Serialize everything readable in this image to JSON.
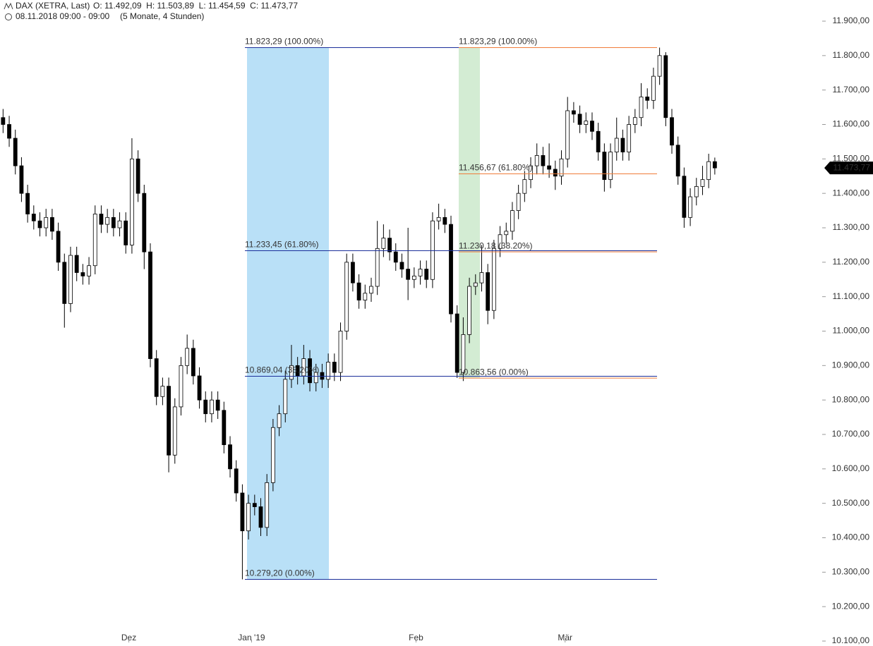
{
  "chart_data": {
    "type": "candlestick",
    "title": "DAX (XETRA, Last)",
    "ohlc_text": "O: 11.492,09  H: 11.503,89  L: 11.454,59  C: 11.473,77",
    "subtitle": "08.11.2018 09:00 - 09:00",
    "period": "(5 Monate, 4 Stunden)",
    "color": "#000000",
    "ylim": [
      10100,
      11900
    ],
    "yticks": [
      {
        "value": 10100,
        "label": "10.100,00"
      },
      {
        "value": 10200,
        "label": "10.200,00"
      },
      {
        "value": 10300,
        "label": "10.300,00"
      },
      {
        "value": 10400,
        "label": "10.400,00"
      },
      {
        "value": 10500,
        "label": "10.500,00"
      },
      {
        "value": 10600,
        "label": "10.600,00"
      },
      {
        "value": 10700,
        "label": "10.700,00"
      },
      {
        "value": 10800,
        "label": "10.800,00"
      },
      {
        "value": 10900,
        "label": "10.900,00"
      },
      {
        "value": 11000,
        "label": "11.000,00"
      },
      {
        "value": 11100,
        "label": "11.100,00"
      },
      {
        "value": 11200,
        "label": "11.200,00"
      },
      {
        "value": 11300,
        "label": "11.300,00"
      },
      {
        "value": 11400,
        "label": "11.400,00"
      },
      {
        "value": 11500,
        "label": "11.500,00"
      },
      {
        "value": 11600,
        "label": "11.600,00"
      },
      {
        "value": 11700,
        "label": "11.700,00"
      },
      {
        "value": 11800,
        "label": "11.800,00"
      },
      {
        "value": 11900,
        "label": "11.900,00"
      }
    ],
    "xlim": [
      -0.5,
      133.5
    ],
    "xticks": [
      {
        "value": 20.5,
        "label": "Dez"
      },
      {
        "value": 40.5,
        "label": "Jan '19"
      },
      {
        "value": 67.3,
        "label": "Feb"
      },
      {
        "value": 91.6,
        "label": "Mär"
      }
    ],
    "last_price": {
      "value": 11473.77,
      "label": "11.473,77"
    },
    "retracements": [
      {
        "color": "#1a3fcc",
        "line_color": "#1b2f9a",
        "band_color": "#b9e0f7",
        "levels": [
          {
            "value": 11823.29,
            "label": "11.823,29 (100.00%)"
          },
          {
            "value": 11233.45,
            "label": "11.233,45 (61.80%)"
          },
          {
            "value": 10869.04,
            "label": "10.869,04 (38.20%)"
          },
          {
            "value": 10279.2,
            "label": "10.279,20 (0.00%)"
          }
        ]
      },
      {
        "color": "#f07c3a",
        "line_color": "#f07c3a",
        "band_color": "#d3ecd3",
        "levels": [
          {
            "value": 11823.29,
            "label": "11.823,29 (100.00%)"
          },
          {
            "value": 11456.67,
            "label": "11.456,67 (61.80%)"
          },
          {
            "value": 11230.18,
            "label": "11.230,18 (38.20%)"
          },
          {
            "value": 10863.56,
            "label": "10.863,56 (0.00%)"
          }
        ]
      }
    ],
    "candles": [
      [
        11620,
        11645,
        11575,
        11600
      ],
      [
        11600,
        11625,
        11535,
        11560
      ],
      [
        11560,
        11585,
        11455,
        11480
      ],
      [
        11480,
        11505,
        11375,
        11400
      ],
      [
        11400,
        11425,
        11315,
        11340
      ],
      [
        11340,
        11365,
        11295,
        11320
      ],
      [
        11320,
        11345,
        11275,
        11300
      ],
      [
        11300,
        11355,
        11275,
        11330
      ],
      [
        11330,
        11355,
        11265,
        11290
      ],
      [
        11290,
        11315,
        11175,
        11200
      ],
      [
        11200,
        11225,
        11010,
        11080
      ],
      [
        11080,
        11245,
        11055,
        11220
      ],
      [
        11220,
        11245,
        11145,
        11170
      ],
      [
        11170,
        11195,
        11135,
        11160
      ],
      [
        11160,
        11215,
        11135,
        11190
      ],
      [
        11190,
        11365,
        11165,
        11340
      ],
      [
        11340,
        11365,
        11285,
        11310
      ],
      [
        11310,
        11355,
        11285,
        11330
      ],
      [
        11330,
        11355,
        11275,
        11300
      ],
      [
        11300,
        11345,
        11275,
        11320
      ],
      [
        11320,
        11345,
        11225,
        11250
      ],
      [
        11250,
        11560,
        11225,
        11500
      ],
      [
        11500,
        11525,
        11375,
        11400
      ],
      [
        11400,
        11425,
        11180,
        11230
      ],
      [
        11230,
        11255,
        10895,
        10920
      ],
      [
        10920,
        10945,
        10785,
        10810
      ],
      [
        10810,
        10865,
        10785,
        10840
      ],
      [
        10840,
        10865,
        10590,
        10640
      ],
      [
        10640,
        10805,
        10615,
        10780
      ],
      [
        10780,
        10925,
        10755,
        10900
      ],
      [
        10900,
        10990,
        10875,
        10950
      ],
      [
        10950,
        10975,
        10845,
        10870
      ],
      [
        10870,
        10895,
        10775,
        10800
      ],
      [
        10800,
        10825,
        10735,
        10760
      ],
      [
        10760,
        10825,
        10735,
        10800
      ],
      [
        10800,
        10825,
        10745,
        10770
      ],
      [
        10770,
        10795,
        10645,
        10670
      ],
      [
        10670,
        10695,
        10575,
        10600
      ],
      [
        10600,
        10625,
        10505,
        10530
      ],
      [
        10530,
        10555,
        10279.2,
        10420
      ],
      [
        10420,
        10525,
        10395,
        10500
      ],
      [
        10500,
        10525,
        10465,
        10490
      ],
      [
        10490,
        10515,
        10405,
        10430
      ],
      [
        10430,
        10585,
        10405,
        10560
      ],
      [
        10560,
        10745,
        10535,
        10720
      ],
      [
        10720,
        10785,
        10695,
        10760
      ],
      [
        10760,
        10885,
        10735,
        10860
      ],
      [
        10860,
        10960,
        10835,
        10900
      ],
      [
        10900,
        10925,
        10845,
        10870
      ],
      [
        10870,
        10960,
        10845,
        10920
      ],
      [
        10920,
        10945,
        10825,
        10850
      ],
      [
        10850,
        10905,
        10825,
        10880
      ],
      [
        10880,
        10905,
        10835,
        10860
      ],
      [
        10860,
        10935,
        10835,
        10910
      ],
      [
        10910,
        10935,
        10855,
        10880
      ],
      [
        10880,
        11025,
        10855,
        11000
      ],
      [
        11000,
        11225,
        10975,
        11200
      ],
      [
        11200,
        11225,
        11115,
        11140
      ],
      [
        11140,
        11165,
        11065,
        11090
      ],
      [
        11090,
        11135,
        11065,
        11110
      ],
      [
        11110,
        11155,
        11085,
        11130
      ],
      [
        11130,
        11320,
        11105,
        11240
      ],
      [
        11240,
        11310,
        11215,
        11270
      ],
      [
        11270,
        11295,
        11205,
        11230
      ],
      [
        11230,
        11255,
        11175,
        11200
      ],
      [
        11200,
        11225,
        11155,
        11180
      ],
      [
        11180,
        11300,
        11090,
        11150
      ],
      [
        11150,
        11185,
        11125,
        11160
      ],
      [
        11160,
        11205,
        11135,
        11180
      ],
      [
        11180,
        11205,
        11125,
        11150
      ],
      [
        11150,
        11345,
        11125,
        11320
      ],
      [
        11320,
        11370,
        11295,
        11330
      ],
      [
        11330,
        11355,
        11285,
        11310
      ],
      [
        11310,
        11335,
        11025,
        11050
      ],
      [
        11050,
        11075,
        10864,
        10880
      ],
      [
        10880,
        11040,
        10855,
        10990
      ],
      [
        10990,
        11155,
        10965,
        11130
      ],
      [
        11130,
        11165,
        11105,
        11140
      ],
      [
        11140,
        11250,
        11115,
        11170
      ],
      [
        11170,
        11195,
        11020,
        11060
      ],
      [
        11060,
        11265,
        11035,
        11240
      ],
      [
        11240,
        11305,
        11215,
        11280
      ],
      [
        11280,
        11315,
        11255,
        11290
      ],
      [
        11290,
        11375,
        11265,
        11350
      ],
      [
        11350,
        11425,
        11325,
        11400
      ],
      [
        11400,
        11465,
        11375,
        11440
      ],
      [
        11440,
        11505,
        11415,
        11480
      ],
      [
        11480,
        11545,
        11455,
        11510
      ],
      [
        11510,
        11535,
        11455,
        11480
      ],
      [
        11480,
        11545,
        11445,
        11470
      ],
      [
        11470,
        11495,
        11410,
        11450
      ],
      [
        11450,
        11525,
        11425,
        11500
      ],
      [
        11500,
        11680,
        11475,
        11640
      ],
      [
        11640,
        11665,
        11605,
        11630
      ],
      [
        11630,
        11655,
        11575,
        11600
      ],
      [
        11600,
        11635,
        11575,
        11610
      ],
      [
        11610,
        11635,
        11555,
        11580
      ],
      [
        11580,
        11605,
        11495,
        11520
      ],
      [
        11520,
        11545,
        11405,
        11440
      ],
      [
        11440,
        11545,
        11415,
        11520
      ],
      [
        11520,
        11620,
        11495,
        11560
      ],
      [
        11560,
        11585,
        11495,
        11520
      ],
      [
        11520,
        11625,
        11495,
        11600
      ],
      [
        11600,
        11645,
        11575,
        11620
      ],
      [
        11620,
        11720,
        11595,
        11680
      ],
      [
        11680,
        11705,
        11645,
        11670
      ],
      [
        11670,
        11765,
        11645,
        11740
      ],
      [
        11740,
        11823.29,
        11715,
        11800
      ],
      [
        11800,
        11810,
        11595,
        11620
      ],
      [
        11620,
        11645,
        11515,
        11540
      ],
      [
        11540,
        11565,
        11425,
        11450
      ],
      [
        11450,
        11475,
        11300,
        11330
      ],
      [
        11330,
        11415,
        11305,
        11390
      ],
      [
        11390,
        11445,
        11365,
        11420
      ],
      [
        11420,
        11480,
        11395,
        11440
      ],
      [
        11440,
        11515,
        11415,
        11492.09
      ],
      [
        11492.09,
        11503.89,
        11454.59,
        11473.77
      ]
    ]
  }
}
